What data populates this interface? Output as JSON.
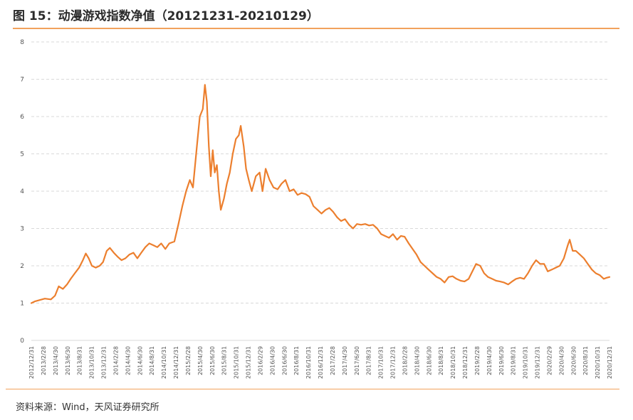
{
  "header": {
    "title": "图 15：动漫游戏指数净值（20121231-20210129）"
  },
  "footer": {
    "source": "资料来源：Wind，天风证券研究所"
  },
  "colors": {
    "line": "#ec7f2e",
    "grid": "#d9d9d9",
    "accent_rule": "#f2a25c"
  },
  "chart_data": {
    "type": "line",
    "ylim": [
      0,
      8
    ],
    "yticks": [
      0,
      1,
      2,
      3,
      4,
      5,
      6,
      7,
      8
    ],
    "grid": "horizontal-dashed",
    "legend": "none",
    "xlim": [
      "2012-12-31",
      "2021-01-29"
    ],
    "x_tick_labels": [
      "2012/12/31",
      "2013/2/28",
      "2013/4/30",
      "2013/6/30",
      "2013/8/31",
      "2013/10/31",
      "2013/12/31",
      "2014/2/28",
      "2014/4/30",
      "2014/6/30",
      "2014/8/31",
      "2014/10/31",
      "2014/12/31",
      "2015/2/28",
      "2015/4/30",
      "2015/6/30",
      "2015/8/31",
      "2015/10/31",
      "2015/12/31",
      "2016/2/29",
      "2016/4/30",
      "2016/6/30",
      "2016/8/31",
      "2016/10/31",
      "2016/12/31",
      "2017/2/28",
      "2017/4/30",
      "2017/6/30",
      "2017/8/31",
      "2017/10/31",
      "2017/12/31",
      "2018/2/28",
      "2018/4/30",
      "2018/6/30",
      "2018/8/31",
      "2018/10/31",
      "2018/12/31",
      "2019/2/28",
      "2019/4/30",
      "2019/6/30",
      "2019/8/31",
      "2019/10/31",
      "2019/12/31",
      "2020/2/29",
      "2020/4/30",
      "2020/6/30",
      "2020/8/31",
      "2020/10/31",
      "2020/12/31"
    ],
    "series": [
      {
        "points": [
          [
            "2012-12-31",
            1.0
          ],
          [
            "2013-01-20",
            1.05
          ],
          [
            "2013-02-10",
            1.08
          ],
          [
            "2013-03-10",
            1.12
          ],
          [
            "2013-04-10",
            1.1
          ],
          [
            "2013-05-01",
            1.2
          ],
          [
            "2013-05-20",
            1.45
          ],
          [
            "2013-06-10",
            1.38
          ],
          [
            "2013-07-01",
            1.5
          ],
          [
            "2013-07-20",
            1.65
          ],
          [
            "2013-08-10",
            1.8
          ],
          [
            "2013-09-01",
            1.95
          ],
          [
            "2013-09-20",
            2.15
          ],
          [
            "2013-10-05",
            2.33
          ],
          [
            "2013-10-20",
            2.2
          ],
          [
            "2013-11-05",
            2.0
          ],
          [
            "2013-11-25",
            1.95
          ],
          [
            "2013-12-15",
            2.0
          ],
          [
            "2014-01-01",
            2.1
          ],
          [
            "2014-01-20",
            2.4
          ],
          [
            "2014-02-05",
            2.48
          ],
          [
            "2014-02-25",
            2.35
          ],
          [
            "2014-03-15",
            2.25
          ],
          [
            "2014-04-05",
            2.15
          ],
          [
            "2014-04-25",
            2.2
          ],
          [
            "2014-05-15",
            2.3
          ],
          [
            "2014-06-05",
            2.35
          ],
          [
            "2014-06-25",
            2.2
          ],
          [
            "2014-07-15",
            2.35
          ],
          [
            "2014-08-05",
            2.5
          ],
          [
            "2014-08-25",
            2.6
          ],
          [
            "2014-09-15",
            2.55
          ],
          [
            "2014-10-05",
            2.5
          ],
          [
            "2014-10-25",
            2.6
          ],
          [
            "2014-11-15",
            2.45
          ],
          [
            "2014-12-05",
            2.6
          ],
          [
            "2014-12-31",
            2.65
          ],
          [
            "2015-01-20",
            3.1
          ],
          [
            "2015-02-10",
            3.6
          ],
          [
            "2015-03-01",
            4.0
          ],
          [
            "2015-03-20",
            4.3
          ],
          [
            "2015-04-05",
            4.1
          ],
          [
            "2015-04-25",
            5.2
          ],
          [
            "2015-05-10",
            6.0
          ],
          [
            "2015-05-25",
            6.2
          ],
          [
            "2015-06-05",
            6.85
          ],
          [
            "2015-06-15",
            6.4
          ],
          [
            "2015-06-25",
            5.2
          ],
          [
            "2015-07-05",
            4.4
          ],
          [
            "2015-07-15",
            5.1
          ],
          [
            "2015-07-25",
            4.5
          ],
          [
            "2015-08-05",
            4.7
          ],
          [
            "2015-08-15",
            4.0
          ],
          [
            "2015-08-25",
            3.5
          ],
          [
            "2015-09-10",
            3.8
          ],
          [
            "2015-09-25",
            4.2
          ],
          [
            "2015-10-10",
            4.5
          ],
          [
            "2015-10-25",
            5.0
          ],
          [
            "2015-11-10",
            5.4
          ],
          [
            "2015-11-25",
            5.5
          ],
          [
            "2015-12-05",
            5.75
          ],
          [
            "2015-12-20",
            5.2
          ],
          [
            "2016-01-01",
            4.6
          ],
          [
            "2016-01-15",
            4.3
          ],
          [
            "2016-01-30",
            4.0
          ],
          [
            "2016-02-20",
            4.4
          ],
          [
            "2016-03-10",
            4.5
          ],
          [
            "2016-03-25",
            4.0
          ],
          [
            "2016-04-10",
            4.6
          ],
          [
            "2016-04-30",
            4.3
          ],
          [
            "2016-05-20",
            4.1
          ],
          [
            "2016-06-10",
            4.05
          ],
          [
            "2016-06-30",
            4.2
          ],
          [
            "2016-07-20",
            4.3
          ],
          [
            "2016-08-10",
            4.0
          ],
          [
            "2016-08-31",
            4.05
          ],
          [
            "2016-09-20",
            3.9
          ],
          [
            "2016-10-10",
            3.95
          ],
          [
            "2016-10-31",
            3.92
          ],
          [
            "2016-11-20",
            3.85
          ],
          [
            "2016-12-10",
            3.6
          ],
          [
            "2016-12-31",
            3.5
          ],
          [
            "2017-01-20",
            3.4
          ],
          [
            "2017-02-10",
            3.5
          ],
          [
            "2017-03-01",
            3.55
          ],
          [
            "2017-03-20",
            3.45
          ],
          [
            "2017-04-10",
            3.3
          ],
          [
            "2017-04-30",
            3.2
          ],
          [
            "2017-05-20",
            3.25
          ],
          [
            "2017-06-10",
            3.1
          ],
          [
            "2017-06-30",
            3.0
          ],
          [
            "2017-07-20",
            3.12
          ],
          [
            "2017-08-10",
            3.1
          ],
          [
            "2017-08-31",
            3.12
          ],
          [
            "2017-09-20",
            3.08
          ],
          [
            "2017-10-10",
            3.1
          ],
          [
            "2017-10-31",
            3.0
          ],
          [
            "2017-11-20",
            2.85
          ],
          [
            "2017-12-10",
            2.8
          ],
          [
            "2017-12-31",
            2.75
          ],
          [
            "2018-01-20",
            2.85
          ],
          [
            "2018-02-10",
            2.7
          ],
          [
            "2018-03-01",
            2.8
          ],
          [
            "2018-03-20",
            2.78
          ],
          [
            "2018-04-10",
            2.6
          ],
          [
            "2018-04-30",
            2.45
          ],
          [
            "2018-05-20",
            2.3
          ],
          [
            "2018-06-10",
            2.1
          ],
          [
            "2018-06-30",
            2.0
          ],
          [
            "2018-07-20",
            1.9
          ],
          [
            "2018-08-10",
            1.8
          ],
          [
            "2018-08-31",
            1.7
          ],
          [
            "2018-09-20",
            1.65
          ],
          [
            "2018-10-10",
            1.55
          ],
          [
            "2018-10-31",
            1.7
          ],
          [
            "2018-11-20",
            1.72
          ],
          [
            "2018-12-10",
            1.65
          ],
          [
            "2018-12-31",
            1.6
          ],
          [
            "2019-01-20",
            1.58
          ],
          [
            "2019-02-10",
            1.65
          ],
          [
            "2019-03-01",
            1.85
          ],
          [
            "2019-03-20",
            2.05
          ],
          [
            "2019-04-10",
            2.0
          ],
          [
            "2019-04-30",
            1.8
          ],
          [
            "2019-05-20",
            1.7
          ],
          [
            "2019-06-10",
            1.65
          ],
          [
            "2019-06-30",
            1.6
          ],
          [
            "2019-07-20",
            1.58
          ],
          [
            "2019-08-10",
            1.55
          ],
          [
            "2019-08-31",
            1.5
          ],
          [
            "2019-09-20",
            1.58
          ],
          [
            "2019-10-10",
            1.65
          ],
          [
            "2019-10-31",
            1.68
          ],
          [
            "2019-11-20",
            1.65
          ],
          [
            "2019-12-10",
            1.8
          ],
          [
            "2019-12-31",
            2.0
          ],
          [
            "2020-01-20",
            2.15
          ],
          [
            "2020-02-10",
            2.05
          ],
          [
            "2020-03-01",
            2.05
          ],
          [
            "2020-03-20",
            1.85
          ],
          [
            "2020-04-10",
            1.9
          ],
          [
            "2020-04-30",
            1.95
          ],
          [
            "2020-05-20",
            2.0
          ],
          [
            "2020-06-10",
            2.2
          ],
          [
            "2020-06-30",
            2.55
          ],
          [
            "2020-07-10",
            2.7
          ],
          [
            "2020-07-25",
            2.4
          ],
          [
            "2020-08-10",
            2.4
          ],
          [
            "2020-08-31",
            2.3
          ],
          [
            "2020-09-20",
            2.2
          ],
          [
            "2020-10-10",
            2.05
          ],
          [
            "2020-10-31",
            1.9
          ],
          [
            "2020-11-20",
            1.8
          ],
          [
            "2020-12-10",
            1.75
          ],
          [
            "2020-12-31",
            1.65
          ],
          [
            "2021-01-15",
            1.68
          ],
          [
            "2021-01-29",
            1.7
          ]
        ]
      }
    ]
  }
}
